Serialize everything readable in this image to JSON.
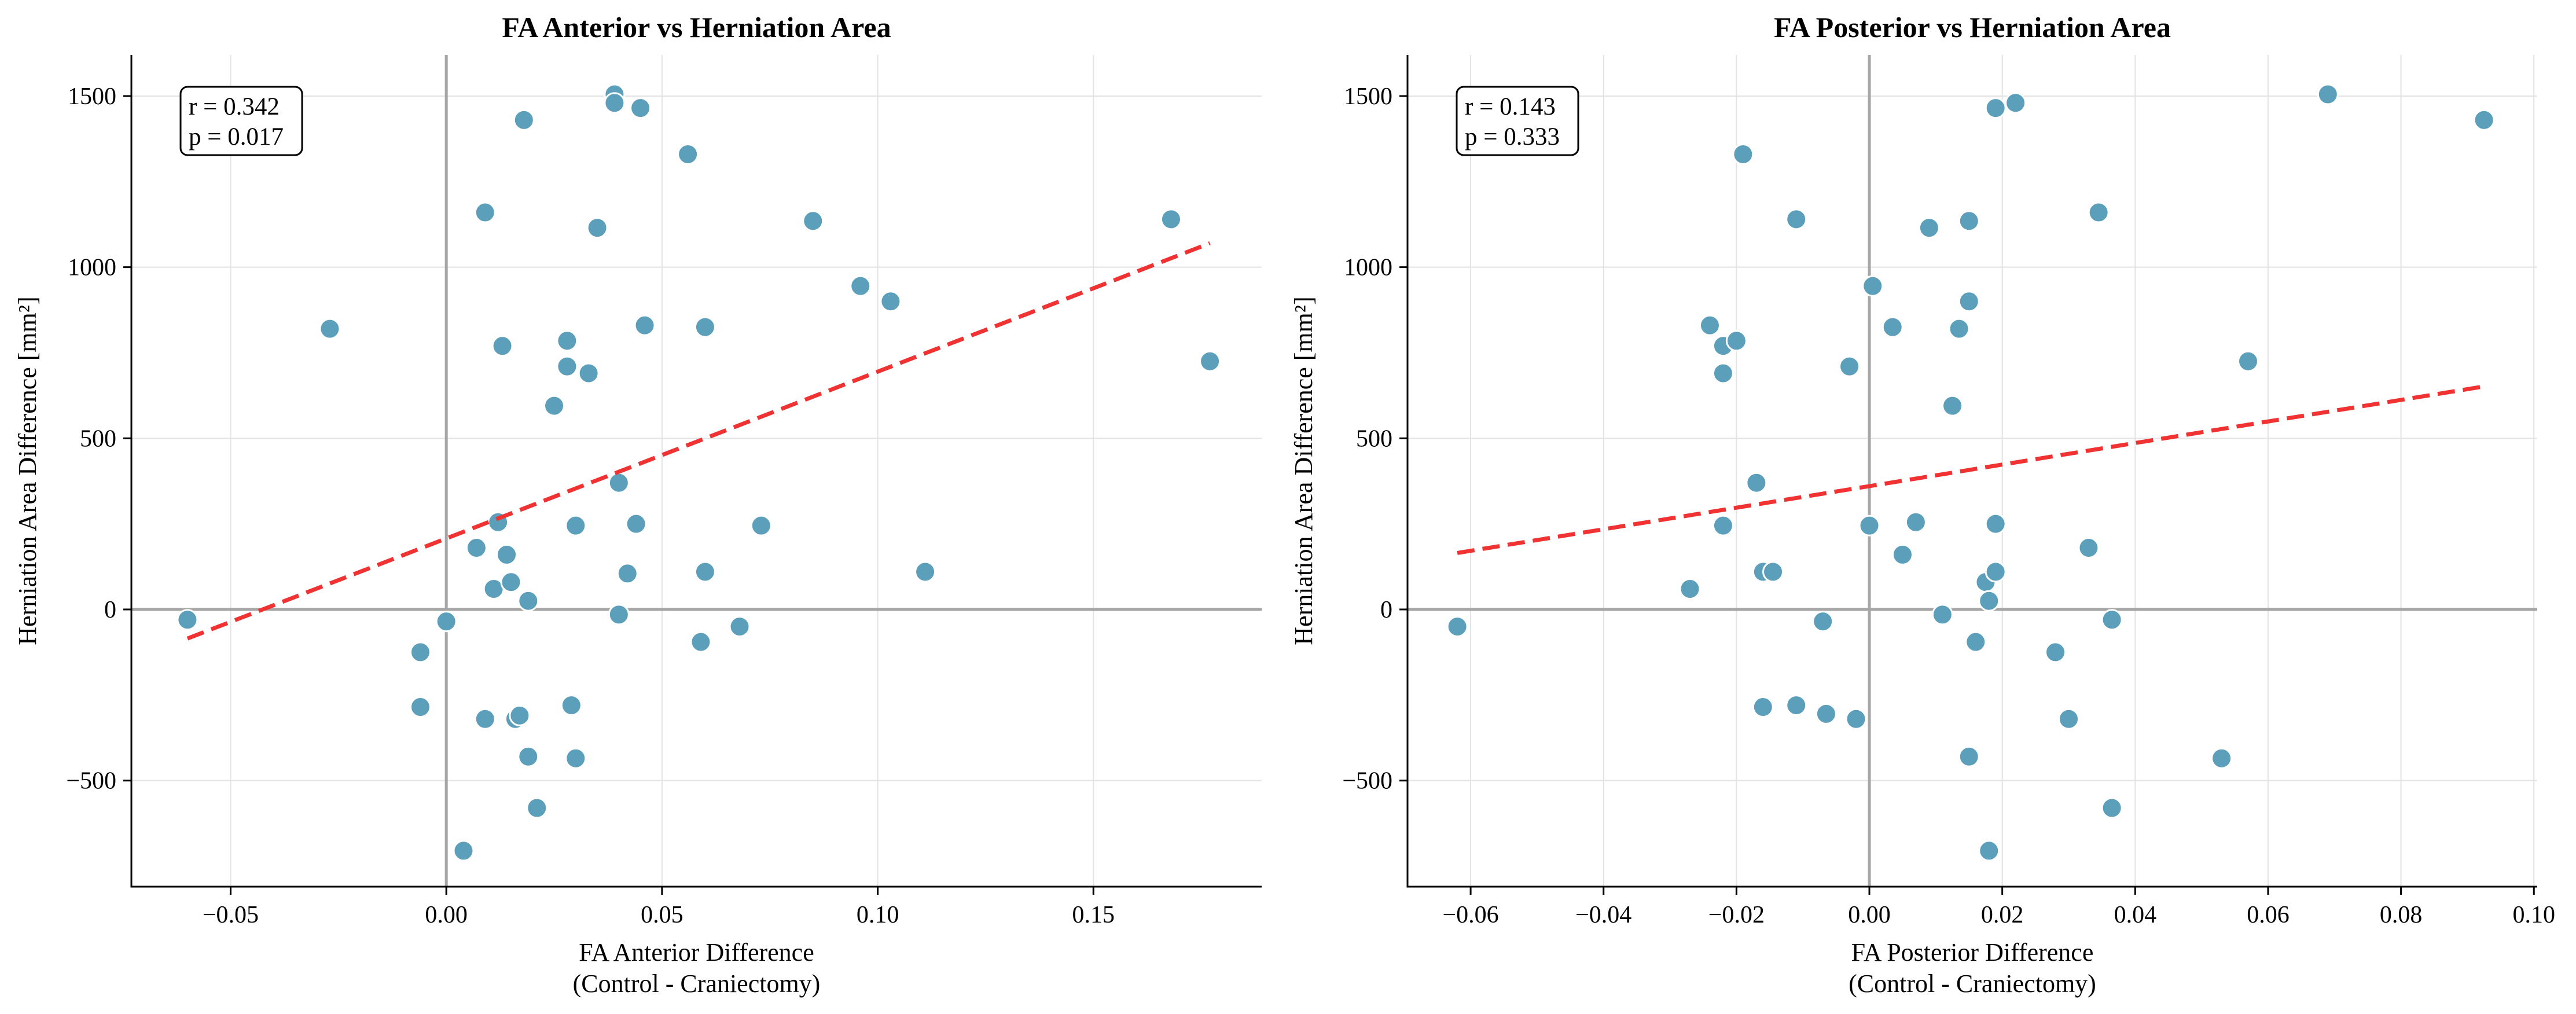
{
  "chart_data": [
    {
      "type": "scatter",
      "title": "FA Anterior vs Herniation Area",
      "xlabel": [
        "FA Anterior Difference",
        "(Control - Craniectomy)"
      ],
      "ylabel": "Herniation Area Difference [mm²]",
      "xlim": [
        -0.073,
        0.189
      ],
      "ylim": [
        -810,
        1620
      ],
      "xticks": [
        -0.05,
        0.0,
        0.05,
        0.1,
        0.15
      ],
      "xtick_labels": [
        "−0.05",
        "0.00",
        "0.05",
        "0.10",
        "0.15"
      ],
      "yticks": [
        -500,
        0,
        500,
        1000,
        1500
      ],
      "ytick_labels": [
        "−500",
        "0",
        "500",
        "1000",
        "1500"
      ],
      "grid": true,
      "zero_lines": true,
      "stats": {
        "r": "r = 0.342",
        "p": "p = 0.017"
      },
      "fit": {
        "x": [
          -0.06,
          0.177
        ],
        "y": [
          -85,
          1070
        ]
      },
      "series": [
        {
          "color": "#5b9fbb",
          "points": [
            [
              -0.06,
              -30
            ],
            [
              -0.027,
              820
            ],
            [
              -0.006,
              -125
            ],
            [
              -0.006,
              -285
            ],
            [
              0.0,
              -35
            ],
            [
              0.004,
              -705
            ],
            [
              0.007,
              180
            ],
            [
              0.009,
              1160
            ],
            [
              0.009,
              -320
            ],
            [
              0.011,
              60
            ],
            [
              0.012,
              255
            ],
            [
              0.013,
              770
            ],
            [
              0.014,
              160
            ],
            [
              0.015,
              80
            ],
            [
              0.016,
              -320
            ],
            [
              0.017,
              -310
            ],
            [
              0.018,
              1430
            ],
            [
              0.019,
              25
            ],
            [
              0.019,
              -430
            ],
            [
              0.021,
              -580
            ],
            [
              0.025,
              595
            ],
            [
              0.028,
              785
            ],
            [
              0.028,
              710
            ],
            [
              0.029,
              -280
            ],
            [
              0.03,
              245
            ],
            [
              0.03,
              -435
            ],
            [
              0.033,
              690
            ],
            [
              0.035,
              1115
            ],
            [
              0.039,
              1505
            ],
            [
              0.039,
              1480
            ],
            [
              0.04,
              -15
            ],
            [
              0.04,
              370
            ],
            [
              0.042,
              105
            ],
            [
              0.044,
              250
            ],
            [
              0.045,
              1465
            ],
            [
              0.046,
              830
            ],
            [
              0.056,
              1330
            ],
            [
              0.059,
              -95
            ],
            [
              0.06,
              110
            ],
            [
              0.06,
              825
            ],
            [
              0.068,
              -50
            ],
            [
              0.073,
              245
            ],
            [
              0.085,
              1135
            ],
            [
              0.096,
              945
            ],
            [
              0.103,
              900
            ],
            [
              0.111,
              110
            ],
            [
              0.168,
              1140
            ],
            [
              0.177,
              725
            ]
          ]
        }
      ]
    },
    {
      "type": "scatter",
      "title": "FA Posterior vs Herniation Area",
      "xlabel": [
        "FA Posterior Difference",
        "(Control - Craniectomy)"
      ],
      "ylabel": "Herniation Area Difference [mm²]",
      "xlim": [
        -0.0695,
        0.1005
      ],
      "ylim": [
        -810,
        1620
      ],
      "xticks": [
        -0.06,
        -0.04,
        -0.02,
        0.0,
        0.02,
        0.04,
        0.06,
        0.08,
        0.1
      ],
      "xtick_labels": [
        "−0.06",
        "−0.04",
        "−0.02",
        "0.00",
        "0.02",
        "0.04",
        "0.06",
        "0.08",
        "0.10"
      ],
      "yticks": [
        -500,
        0,
        500,
        1000,
        1500
      ],
      "ytick_labels": [
        "−500",
        "0",
        "500",
        "1000",
        "1500"
      ],
      "grid": true,
      "zero_lines": true,
      "stats": {
        "r": "r = 0.143",
        "p": "p = 0.333"
      },
      "fit": {
        "x": [
          -0.062,
          0.092
        ],
        "y": [
          165,
          650
        ]
      },
      "series": [
        {
          "color": "#5b9fbb",
          "points": [
            [
              -0.062,
              -50
            ],
            [
              -0.027,
              60
            ],
            [
              -0.024,
              830
            ],
            [
              -0.022,
              770
            ],
            [
              -0.022,
              690
            ],
            [
              -0.022,
              245
            ],
            [
              -0.02,
              785
            ],
            [
              -0.019,
              1330
            ],
            [
              -0.017,
              370
            ],
            [
              -0.016,
              110
            ],
            [
              -0.016,
              -285
            ],
            [
              -0.0145,
              110
            ],
            [
              -0.011,
              1140
            ],
            [
              -0.011,
              -280
            ],
            [
              -0.007,
              -35
            ],
            [
              -0.0065,
              -305
            ],
            [
              -0.003,
              710
            ],
            [
              -0.002,
              -320
            ],
            [
              0.0,
              245
            ],
            [
              0.0005,
              945
            ],
            [
              0.0035,
              825
            ],
            [
              0.005,
              160
            ],
            [
              0.007,
              255
            ],
            [
              0.009,
              1115
            ],
            [
              0.011,
              -15
            ],
            [
              0.0125,
              595
            ],
            [
              0.0135,
              820
            ],
            [
              0.015,
              900
            ],
            [
              0.015,
              1135
            ],
            [
              0.015,
              -430
            ],
            [
              0.016,
              -95
            ],
            [
              0.0175,
              80
            ],
            [
              0.018,
              25
            ],
            [
              0.018,
              -705
            ],
            [
              0.019,
              110
            ],
            [
              0.019,
              250
            ],
            [
              0.019,
              1465
            ],
            [
              0.022,
              1480
            ],
            [
              0.028,
              -125
            ],
            [
              0.03,
              -320
            ],
            [
              0.033,
              180
            ],
            [
              0.0345,
              1160
            ],
            [
              0.0365,
              -30
            ],
            [
              0.0365,
              -580
            ],
            [
              0.053,
              -435
            ],
            [
              0.057,
              725
            ],
            [
              0.069,
              1505
            ],
            [
              0.0925,
              1430
            ]
          ]
        }
      ]
    }
  ]
}
